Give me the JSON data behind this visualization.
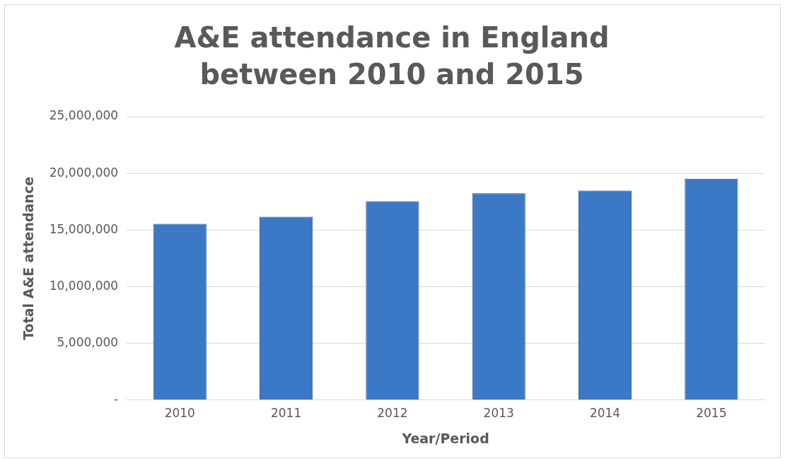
{
  "chart_data": {
    "type": "bar",
    "title": "A&E attendance in England between 2010 and 2015",
    "xlabel": "Year/Period",
    "ylabel": "Total A&E attendance",
    "categories": [
      "2010",
      "2011",
      "2012",
      "2013",
      "2014",
      "2015"
    ],
    "values": [
      15550000,
      16170000,
      17550000,
      18250000,
      18480000,
      19520000
    ],
    "color": "#3b78c6",
    "ylim": [
      0,
      25000000
    ],
    "yticks": [
      {
        "value": 0,
        "label": "-"
      },
      {
        "value": 5000000,
        "label": "5,000,000"
      },
      {
        "value": 10000000,
        "label": "10,000,000"
      },
      {
        "value": 15000000,
        "label": "15,000,000"
      },
      {
        "value": 20000000,
        "label": "20,000,000"
      },
      {
        "value": 25000000,
        "label": "25,000,000"
      }
    ],
    "grid": "y",
    "legend": false
  }
}
